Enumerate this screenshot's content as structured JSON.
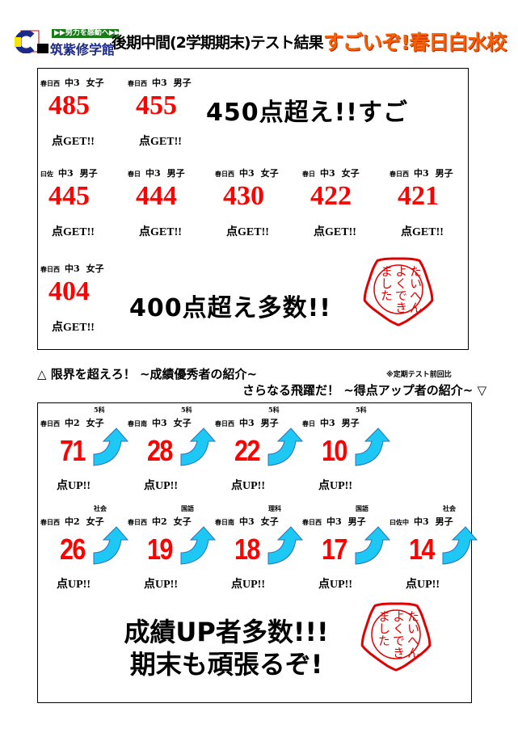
{
  "header": {
    "logo_tagline": "▶▶努力を感動へ▶▶",
    "logo_name": "筑紫修学館",
    "title": "後期中間(2学期期末)テスト結果",
    "highlight": "すごいぞ!春日白水校"
  },
  "colors": {
    "score": "#ff0000",
    "highlight": "#f26000",
    "arrow": "#1ec8f5",
    "stamp": "#e00000"
  },
  "top": {
    "suffix": "点GET!!",
    "headline1": "450点超え!!すご",
    "headline2": "400点超え多数!!",
    "students": [
      {
        "school": "春日西",
        "grade": "中3",
        "gender": "女子",
        "score": "485"
      },
      {
        "school": "春日西",
        "grade": "中3",
        "gender": "男子",
        "score": "455"
      },
      {
        "school": "曰佐",
        "grade": "中3",
        "gender": "男子",
        "score": "445"
      },
      {
        "school": "春日",
        "grade": "中3",
        "gender": "男子",
        "score": "444"
      },
      {
        "school": "春日西",
        "grade": "中3",
        "gender": "女子",
        "score": "430"
      },
      {
        "school": "春日",
        "grade": "中3",
        "gender": "女子",
        "score": "422"
      },
      {
        "school": "春日西",
        "grade": "中3",
        "gender": "男子",
        "score": "421"
      },
      {
        "school": "春日西",
        "grade": "中3",
        "gender": "女子",
        "score": "404"
      }
    ]
  },
  "stamp": {
    "text": "たいへんよくできました"
  },
  "section": {
    "heading1": "△ 限界を超えろ！ ~成績優秀者の紹介~",
    "note": "※定期テスト前回比",
    "heading2": "さらなる飛躍だ！ ~得点アップ者の紹介~ ▽"
  },
  "bottom": {
    "suffix": "点UP!!",
    "headline1": "成績UP者多数!!!",
    "headline2": "期末も頑張るぞ!",
    "students": [
      {
        "subject": "5科",
        "school": "春日西",
        "grade": "中2",
        "gender": "女子",
        "gain": "71"
      },
      {
        "subject": "5科",
        "school": "春日南",
        "grade": "中3",
        "gender": "女子",
        "gain": "28"
      },
      {
        "subject": "5科",
        "school": "春日西",
        "grade": "中3",
        "gender": "男子",
        "gain": "22"
      },
      {
        "subject": "5科",
        "school": "春日",
        "grade": "中3",
        "gender": "男子",
        "gain": "10"
      },
      {
        "subject": "社会",
        "school": "春日西",
        "grade": "中2",
        "gender": "女子",
        "gain": "26"
      },
      {
        "subject": "国語",
        "school": "春日西",
        "grade": "中2",
        "gender": "女子",
        "gain": "19"
      },
      {
        "subject": "理科",
        "school": "春日南",
        "grade": "中3",
        "gender": "女子",
        "gain": "18"
      },
      {
        "subject": "国語",
        "school": "春日西",
        "grade": "中3",
        "gender": "男子",
        "gain": "17"
      },
      {
        "subject": "社会",
        "school": "曰佐中",
        "grade": "中3",
        "gender": "男子",
        "gain": "14"
      }
    ]
  }
}
